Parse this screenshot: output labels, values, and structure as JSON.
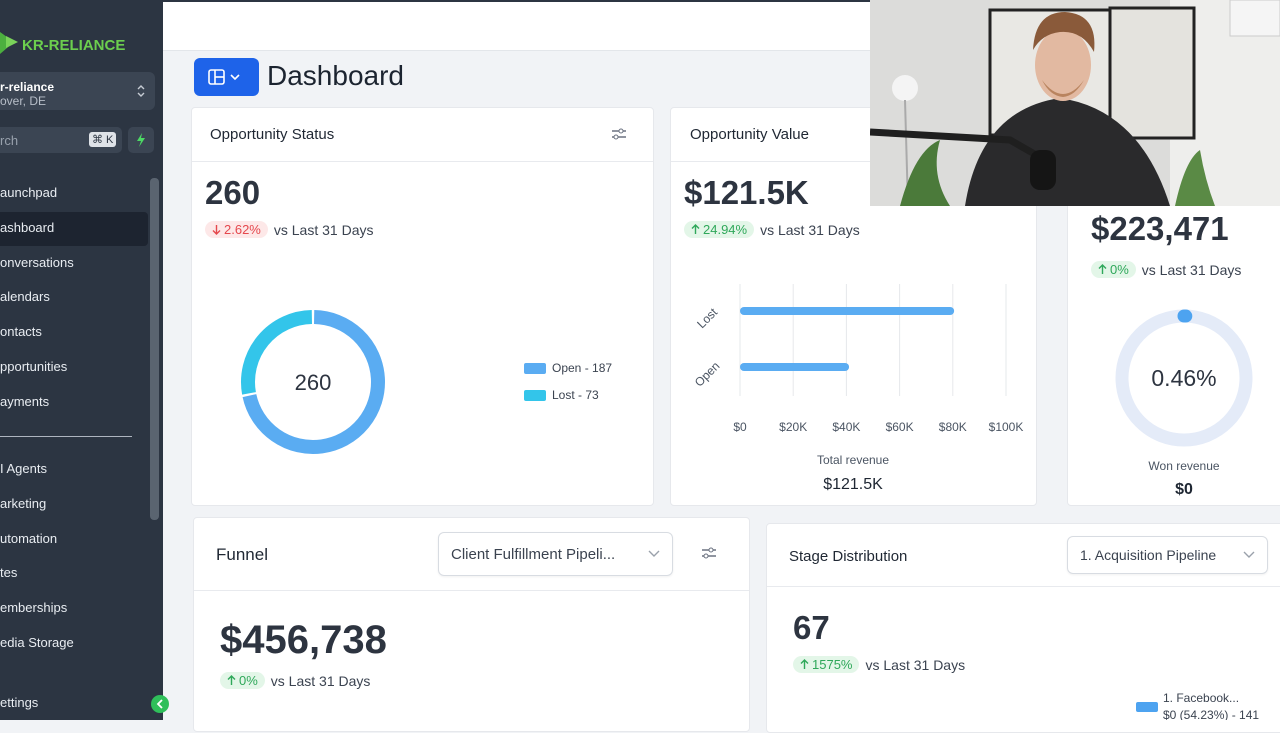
{
  "sidebar": {
    "brand": "KR-RELIANCE",
    "account": {
      "name": "r-reliance",
      "location": "over, DE"
    },
    "search": {
      "placeholder": "rch",
      "shortcut": "⌘ K"
    },
    "nav": [
      "aunchpad",
      "ashboard",
      "onversations",
      "alendars",
      "ontacts",
      "pportunities",
      "ayments"
    ],
    "active": 1,
    "nav2": [
      "I Agents",
      "arketing",
      "utomation",
      "tes",
      "emberships",
      "edia Storage"
    ],
    "footer": "ettings"
  },
  "header": {
    "title": "Dashboard"
  },
  "opportunity_status": {
    "title": "Opportunity Status",
    "value": "260",
    "change": "2.62%",
    "trend": "down",
    "compare": "vs Last 31 Days",
    "donut": {
      "center": "260",
      "segments": [
        {
          "label": "Open - 187",
          "value": 187,
          "color": "#5aacf2"
        },
        {
          "label": "Lost - 73",
          "value": 73,
          "color": "#33c5ea"
        }
      ]
    }
  },
  "opportunity_value": {
    "title": "Opportunity Value",
    "value": "$121.5K",
    "change": "24.94%",
    "trend": "up",
    "compare": "vs Last 31 Days",
    "chart": {
      "type": "bar",
      "orientation": "horizontal",
      "categories": [
        "Lost",
        "Open"
      ],
      "values": [
        80500,
        41000
      ],
      "color": "#5aacf2",
      "xlim": [
        0,
        100000
      ],
      "xticks": [
        {
          "value": 0,
          "label": "$0"
        },
        {
          "value": 20000,
          "label": "$20K"
        },
        {
          "value": 40000,
          "label": "$40K"
        },
        {
          "value": 60000,
          "label": "$60K"
        },
        {
          "value": 80000,
          "label": "$80K"
        },
        {
          "value": 100000,
          "label": "$100K"
        }
      ],
      "grid": true,
      "xlabel": "Total revenue",
      "total": "$121.5K"
    }
  },
  "won": {
    "value": "$223,471",
    "change": "0%",
    "trend": "up",
    "compare": "vs Last 31 Days",
    "gauge": {
      "value": 0.46,
      "value_label": "0.46%",
      "range": [
        0,
        100
      ],
      "color": "#4da3f0"
    },
    "label": "Won revenue",
    "amount": "$0"
  },
  "funnel": {
    "title": "Funnel",
    "pipeline": "Client Fulfillment Pipeli...",
    "value": "$456,738",
    "change": "0%",
    "trend": "up",
    "compare": "vs Last 31 Days"
  },
  "stage_distribution": {
    "title": "Stage Distribution",
    "pipeline": "1. Acquisition Pipeline",
    "value": "67",
    "change": "1575%",
    "trend": "up",
    "compare": "vs Last 31 Days",
    "legend": [
      {
        "label": "1. Facebook...",
        "detail": "$0 (54.23%) - 141"
      }
    ]
  }
}
